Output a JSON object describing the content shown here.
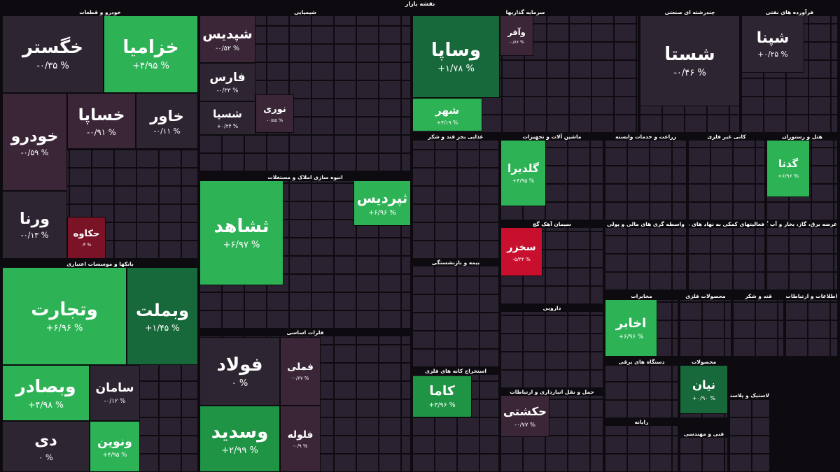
{
  "title": "نقشه بازار",
  "sectors": [
    {
      "name": "خودرو و قطعات",
      "tiles": [
        {
          "name": "خگستر",
          "change": -0.35,
          "change_label": "-۰/۳۵ %"
        },
        {
          "name": "خزامیا",
          "change": 4.95,
          "change_label": "+۴/۹۵ %"
        },
        {
          "name": "خودرو",
          "change": -0.59,
          "change_label": "-۰/۵۹ %"
        },
        {
          "name": "خساپا",
          "change": -0.91,
          "change_label": "-۰/۹۱ %"
        },
        {
          "name": "خاور",
          "change": -0.11,
          "change_label": "-۰/۱۱ %"
        },
        {
          "name": "ورنا",
          "change": -0.13,
          "change_label": "-۰/۱۳ %"
        },
        {
          "name": "حکاوه",
          "change": -3,
          "change_label": "-۳ %"
        }
      ]
    },
    {
      "name": "بانکها و موسسات اعتباری",
      "tiles": [
        {
          "name": "وتجارت",
          "change": 6.96,
          "change_label": "+۶/۹۶ %"
        },
        {
          "name": "وبملت",
          "change": 1.45,
          "change_label": "+۱/۴۵ %"
        },
        {
          "name": "وبصادر",
          "change": 4.98,
          "change_label": "+۴/۹۸ %"
        },
        {
          "name": "سامان",
          "change": -0.12,
          "change_label": "-۰/۱۲ %"
        },
        {
          "name": "دی",
          "change": 0,
          "change_label": "۰ %"
        },
        {
          "name": "ونوین",
          "change": 4.95,
          "change_label": "+۴/۹۵ %"
        }
      ]
    },
    {
      "name": "شیمیایی",
      "tiles": [
        {
          "name": "شپدیس",
          "change": -0.52,
          "change_label": "-۰/۵۲ %"
        },
        {
          "name": "فارس",
          "change": -0.33,
          "change_label": "-۰/۳۳ %"
        },
        {
          "name": "شسپا",
          "change": 0.24,
          "change_label": "+۰/۲۴ %"
        },
        {
          "name": "نوری",
          "change": -0.55,
          "change_label": "-۰/۵۵ %"
        }
      ]
    },
    {
      "name": "انبوه سازی املاک و مستغلات",
      "tiles": [
        {
          "name": "ثشاهد",
          "change": 6.97,
          "change_label": "+۶/۹۷ %"
        },
        {
          "name": "ثپردیس",
          "change": 6.96,
          "change_label": "+۶/۹۶ %"
        }
      ]
    },
    {
      "name": "فلزات اساسی",
      "tiles": [
        {
          "name": "فولاد",
          "change": 0,
          "change_label": "۰ %"
        },
        {
          "name": "فملی",
          "change": -0.67,
          "change_label": "-۰/۶۷ %"
        },
        {
          "name": "وسدید",
          "change": 2.99,
          "change_label": "+۲/۹۹ %"
        },
        {
          "name": "فلوله",
          "change": -0.9,
          "change_label": "-۰/۹ %"
        }
      ]
    },
    {
      "name": "سرمایه گذاریها",
      "tiles": [
        {
          "name": "وساپا",
          "change": 1.78,
          "change_label": "+۱/۷۸ %"
        },
        {
          "name": "وآفر",
          "change": -0.86,
          "change_label": "-۰/۸۶ %"
        },
        {
          "name": "شهر",
          "change": 4.19,
          "change_label": "+۴/۱۹ %"
        }
      ]
    },
    {
      "name": "چندرشته ای صنعتی",
      "tiles": [
        {
          "name": "شستا",
          "change": -0.46,
          "change_label": "-۰/۴۶ %"
        }
      ]
    },
    {
      "name": "فرآورده های نفتی",
      "tiles": [
        {
          "name": "شپنا",
          "change": 0.25,
          "change_label": "+۰/۲۵ %"
        }
      ]
    },
    {
      "name": "ماشین آلات و تجهیزات",
      "tiles": [
        {
          "name": "گلدیرا",
          "change": 4.95,
          "change_label": "+۴/۹۵ %"
        }
      ]
    },
    {
      "name": "هتل و رستوران",
      "tiles": [
        {
          "name": "گدنا",
          "change": 6.96,
          "change_label": "+۶/۹۶ %"
        }
      ]
    },
    {
      "name": "سیمان آهک گچ",
      "tiles": [
        {
          "name": "سخزر",
          "change": -5.44,
          "change_label": "-۵/۴۴ %"
        }
      ]
    },
    {
      "name": "استخراج کانه های فلزی",
      "tiles": [
        {
          "name": "کاما",
          "change": 3.96,
          "change_label": "+۳/۹۶ %"
        }
      ]
    },
    {
      "name": "حمل و نقل انبارداری و ارتباطات",
      "tiles": [
        {
          "name": "حکشتی",
          "change": -0.77,
          "change_label": "-۰/۷۷ %"
        }
      ]
    },
    {
      "name": "مخابرات",
      "tiles": [
        {
          "name": "اخابر",
          "change": 6.96,
          "change_label": "+۶/۹۶ %"
        }
      ]
    },
    {
      "name": "محصولات",
      "tiles": [
        {
          "name": "نیان",
          "change": 0.9,
          "change_label": "+۰/۹۰ %"
        }
      ]
    },
    {
      "name": "غذایی بجز قند و شکر",
      "tiles": []
    },
    {
      "name": "زراعت و خدمات وابسته",
      "tiles": []
    },
    {
      "name": "کانی غیر فلزی",
      "tiles": []
    },
    {
      "name": "بیمه و بازنشستگی",
      "tiles": []
    },
    {
      "name": "دارویی",
      "tiles": []
    },
    {
      "name": "واسطه گری های مالی و پولی",
      "tiles": []
    },
    {
      "name": "فعالیتهای کمکی به نهاد های مالی",
      "tiles": []
    },
    {
      "name": "عرضه برق، گاز، بخار و آب گرم",
      "tiles": []
    },
    {
      "name": "محصولات فلزی",
      "tiles": []
    },
    {
      "name": "قند و شکر",
      "tiles": []
    },
    {
      "name": "اطلاعات و ارتباطات",
      "tiles": []
    },
    {
      "name": "دستگاه های برقی",
      "tiles": []
    },
    {
      "name": "رایانه",
      "tiles": []
    },
    {
      "name": "فنی و مهندسی",
      "tiles": []
    },
    {
      "name": "لاستیک و پلاستیک",
      "tiles": []
    }
  ]
}
